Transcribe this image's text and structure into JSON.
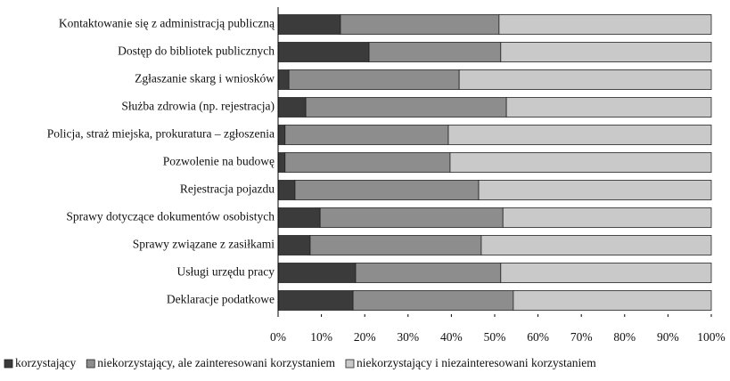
{
  "chart_data": {
    "type": "stacked-barh",
    "categories": [
      "Kontaktowanie się z administracją publiczną",
      "Dostęp do bibliotek publicznych",
      "Zgłaszanie skarg i wniosków",
      "Służba zdrowia (np. rejestracja)",
      "Policja, straż miejska, prokuratura – zgłoszenia",
      "Pozwolenie na budowę",
      "Rejestracja pojazdu",
      "Sprawy dotyczące dokumentów osobistych",
      "Sprawy związane z zasiłkami",
      "Usługi urzędu pracy",
      "Deklaracje podatkowe"
    ],
    "series": [
      {
        "name": "korzystający",
        "color": "#3b3b3b",
        "values": [
          14.4,
          21.0,
          2.5,
          6.4,
          1.6,
          1.6,
          3.9,
          9.7,
          7.4,
          17.9,
          17.3
        ]
      },
      {
        "name": "niekorzystający, ale zainteresowani korzystaniem",
        "color": "#8d8d8d",
        "values": [
          36.6,
          30.4,
          39.3,
          46.3,
          37.7,
          38.1,
          42.4,
          42.2,
          39.5,
          33.5,
          37.0
        ]
      },
      {
        "name": "niekorzystający i niezainteresowani korzystaniem",
        "color": "#c9c9c9",
        "values": [
          49.0,
          48.6,
          58.2,
          47.3,
          60.7,
          60.3,
          53.7,
          48.1,
          53.1,
          48.6,
          45.7
        ]
      }
    ],
    "xlim": [
      0,
      100
    ],
    "xticks": [
      {
        "value": 0,
        "label": "0%"
      },
      {
        "value": 10,
        "label": "10%"
      },
      {
        "value": 20,
        "label": "20%"
      },
      {
        "value": 30,
        "label": "30%"
      },
      {
        "value": 40,
        "label": "40%"
      },
      {
        "value": 50,
        "label": "50%"
      },
      {
        "value": 60,
        "label": "60%"
      },
      {
        "value": 70,
        "label": "70%"
      },
      {
        "value": 80,
        "label": "80%"
      },
      {
        "value": 90,
        "label": "90%"
      },
      {
        "value": 100,
        "label": "100%"
      }
    ],
    "legend": "bottom"
  }
}
